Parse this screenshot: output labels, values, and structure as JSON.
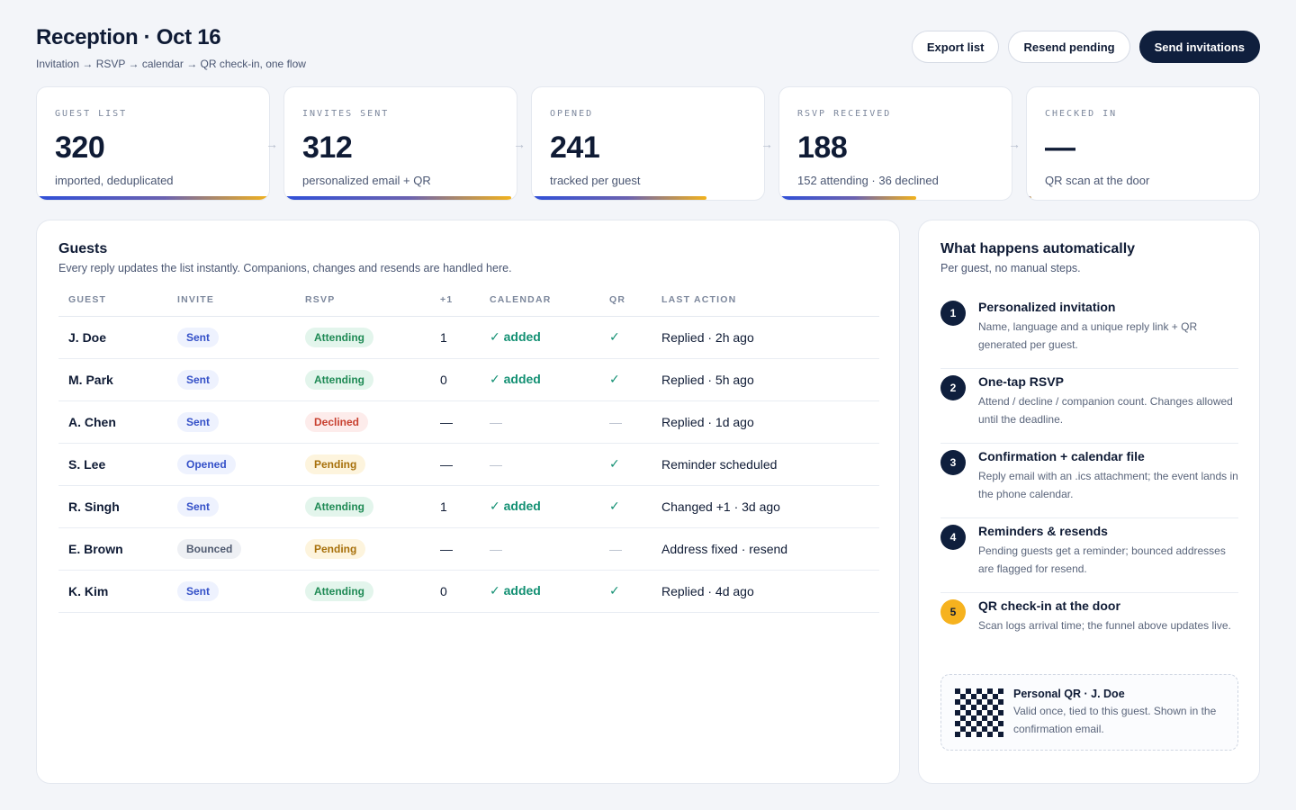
{
  "header": {
    "title": "Reception · Oct 16",
    "subtitle": "Invitation → RSVP → calendar → QR check-in, one flow",
    "export_label": "Export list",
    "resend_label": "Resend pending",
    "send_label": "Send invitations"
  },
  "funnel": [
    {
      "label": "GUEST LIST",
      "value": "320",
      "note": "imported, deduplicated",
      "progress": 1.0
    },
    {
      "label": "INVITES SENT",
      "value": "312",
      "note": "personalized email + QR",
      "progress": 0.975
    },
    {
      "label": "OPENED",
      "value": "241",
      "note": "tracked per guest",
      "progress": 0.753
    },
    {
      "label": "RSVP RECEIVED",
      "value": "188",
      "note": "152 attending · 36 declined",
      "progress": 0.588
    },
    {
      "label": "CHECKED IN",
      "value": "—",
      "note": "QR scan at the door",
      "progress": 0.02
    }
  ],
  "guests": {
    "title": "Guests",
    "subtitle": "Every reply updates the list instantly. Companions, changes and resends are handled here.",
    "columns": [
      "GUEST",
      "INVITE",
      "RSVP",
      "+1",
      "CALENDAR",
      "QR",
      "LAST ACTION"
    ],
    "rows": [
      {
        "guest": "J. Doe",
        "invite": "Sent",
        "rsvp": "Attending",
        "plus": "1",
        "calendar": "✓ added",
        "qr": "✓",
        "last": "Replied · 2h ago"
      },
      {
        "guest": "M. Park",
        "invite": "Sent",
        "rsvp": "Attending",
        "plus": "0",
        "calendar": "✓ added",
        "qr": "✓",
        "last": "Replied · 5h ago"
      },
      {
        "guest": "A. Chen",
        "invite": "Sent",
        "rsvp": "Declined",
        "plus": "—",
        "calendar": "—",
        "qr": "—",
        "last": "Replied · 1d ago"
      },
      {
        "guest": "S. Lee",
        "invite": "Opened",
        "rsvp": "Pending",
        "plus": "—",
        "calendar": "—",
        "qr": "✓",
        "last": "Reminder scheduled"
      },
      {
        "guest": "R. Singh",
        "invite": "Sent",
        "rsvp": "Attending",
        "plus": "1",
        "calendar": "✓ added",
        "qr": "✓",
        "last": "Changed +1 · 3d ago"
      },
      {
        "guest": "E. Brown",
        "invite": "Bounced",
        "rsvp": "Pending",
        "plus": "—",
        "calendar": "—",
        "qr": "—",
        "last": "Address fixed · resend"
      },
      {
        "guest": "K. Kim",
        "invite": "Sent",
        "rsvp": "Attending",
        "plus": "0",
        "calendar": "✓ added",
        "qr": "✓",
        "last": "Replied · 4d ago"
      }
    ]
  },
  "automation": {
    "title": "What happens automatically",
    "subtitle": "Per guest, no manual steps.",
    "steps": [
      {
        "num": "1",
        "title": "Personalized invitation",
        "desc": "Name, language and a unique reply link + QR generated per guest."
      },
      {
        "num": "2",
        "title": "One-tap RSVP",
        "desc": "Attend / decline / companion count. Changes allowed until the deadline."
      },
      {
        "num": "3",
        "title": "Confirmation + calendar file",
        "desc": "Reply email with an .ics attachment; the event lands in the phone calendar."
      },
      {
        "num": "4",
        "title": "Reminders & resends",
        "desc": "Pending guests get a reminder; bounced addresses are flagged for resend."
      },
      {
        "num": "5",
        "title": "QR check-in at the door",
        "desc": "Scan logs arrival time; the funnel above updates live."
      }
    ],
    "qr_card": {
      "title": "Personal QR · J. Doe",
      "desc": "Valid once, tied to this guest. Shown in the confirmation email."
    }
  },
  "colors": {
    "primary": "#0f1f3d",
    "accent_blue": "#2f4fd8",
    "accent_gold": "#f2b21c",
    "success": "#139073",
    "danger": "#c8402f"
  }
}
